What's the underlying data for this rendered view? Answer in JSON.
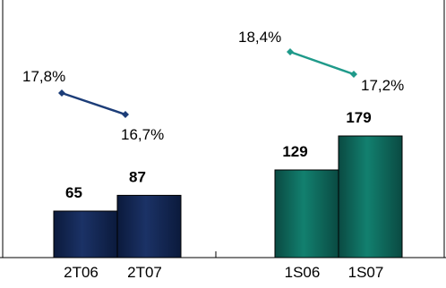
{
  "chart_data": {
    "type": "bar",
    "groups": [
      {
        "categories": [
          "2T06",
          "2T07"
        ],
        "values": [
          65,
          87
        ],
        "value_labels": [
          "65",
          "87"
        ],
        "bar_color": "#16295a",
        "line": {
          "values": [
            17.8,
            16.7
          ],
          "labels": [
            "17,8%",
            "16,7%"
          ],
          "color": "#1c3d78"
        }
      },
      {
        "categories": [
          "1S06",
          "1S07"
        ],
        "values": [
          129,
          179
        ],
        "value_labels": [
          "129",
          "179"
        ],
        "bar_color": "#0f6b60",
        "line": {
          "values": [
            18.4,
            17.2
          ],
          "labels": [
            "18,4%",
            "17,2%"
          ],
          "color": "#1f9a8a"
        }
      }
    ],
    "title": "",
    "xlabel": "",
    "ylabel": "",
    "legend": "none",
    "grid": false
  }
}
